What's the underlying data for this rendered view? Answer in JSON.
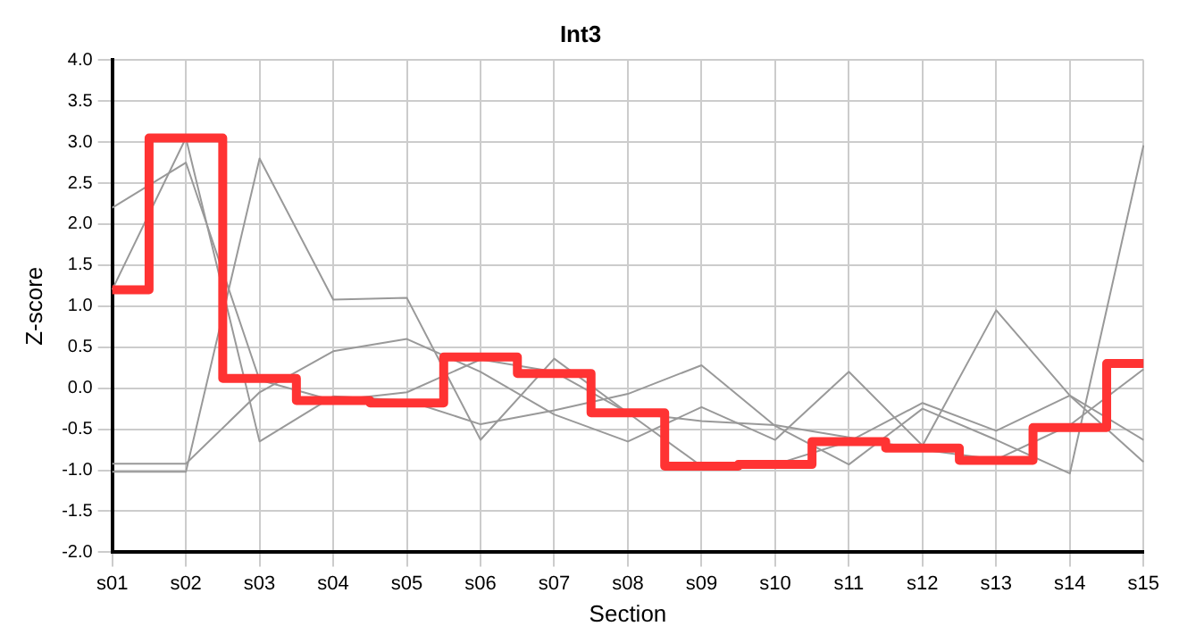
{
  "chart_data": {
    "type": "line",
    "title": "Int3",
    "xlabel": "Section",
    "ylabel": "Z-score",
    "categories": [
      "s01",
      "s02",
      "s03",
      "s04",
      "s05",
      "s06",
      "s07",
      "s08",
      "s09",
      "s10",
      "s11",
      "s12",
      "s13",
      "s14",
      "s15"
    ],
    "series": [
      {
        "type": "line",
        "color": "#999999",
        "values": [
          2.2,
          2.75,
          0.1,
          -0.15,
          -0.05,
          0.35,
          0.2,
          -0.3,
          -0.95,
          -0.93,
          -0.65,
          -0.18,
          -0.52,
          -0.09,
          -0.63
        ]
      },
      {
        "type": "line",
        "color": "#999999",
        "values": [
          1.2,
          3.05,
          -0.65,
          -0.1,
          -0.15,
          -0.44,
          -0.27,
          -0.07,
          0.28,
          -0.46,
          -0.93,
          -0.25,
          -0.63,
          -1.04,
          2.96
        ]
      },
      {
        "type": "line",
        "color": "#999999",
        "values": [
          -0.92,
          -0.92,
          -0.05,
          0.45,
          0.6,
          0.2,
          -0.32,
          -0.65,
          -0.23,
          -0.63,
          0.2,
          -0.7,
          0.95,
          -0.09,
          -0.9
        ]
      },
      {
        "type": "line",
        "color": "#999999",
        "values": [
          -1.02,
          -1.02,
          2.8,
          1.08,
          1.1,
          -0.63,
          0.36,
          -0.3,
          -0.4,
          -0.45,
          -0.6,
          -0.75,
          -0.87,
          -0.45,
          0.23
        ]
      },
      {
        "type": "step",
        "color": "#ff3333",
        "values": [
          1.2,
          3.05,
          0.12,
          -0.15,
          -0.18,
          0.38,
          0.18,
          -0.3,
          -0.95,
          -0.93,
          -0.65,
          -0.73,
          -0.88,
          -0.48,
          0.3
        ]
      }
    ],
    "ylim": [
      -2,
      4
    ],
    "yticks": [
      {
        "value": -2,
        "label": "-2.0"
      },
      {
        "value": -1.5,
        "label": "-1.5"
      },
      {
        "value": -1,
        "label": "-1.0"
      },
      {
        "value": -0.5,
        "label": "-0.5"
      },
      {
        "value": 0,
        "label": "0.0"
      },
      {
        "value": 0.5,
        "label": "0.5"
      },
      {
        "value": 1,
        "label": "1.0"
      },
      {
        "value": 1.5,
        "label": "1.5"
      },
      {
        "value": 2,
        "label": "2.0"
      },
      {
        "value": 2.5,
        "label": "2.5"
      },
      {
        "value": 3,
        "label": "3.0"
      },
      {
        "value": 3.5,
        "label": "3.5"
      },
      {
        "value": 4,
        "label": "4.0"
      }
    ],
    "grid": true,
    "legend": false,
    "marker": "none",
    "line_style": "solid"
  }
}
